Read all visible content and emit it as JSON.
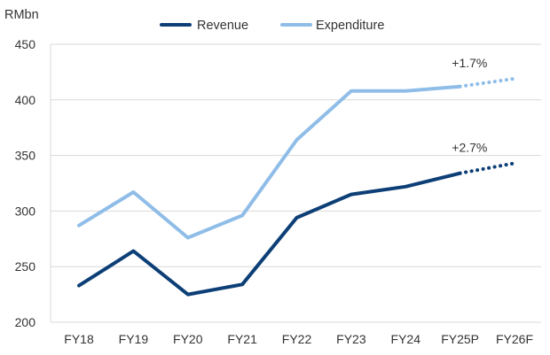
{
  "chart_data": {
    "type": "line",
    "unit_label": "RMbn",
    "categories": [
      "FY18",
      "FY19",
      "FY20",
      "FY21",
      "FY22",
      "FY23",
      "FY24",
      "FY25P",
      "FY26F"
    ],
    "ylim": [
      200,
      450
    ],
    "yticks": [
      200,
      250,
      300,
      350,
      400,
      450
    ],
    "grid": true,
    "legend_position": "top-center",
    "series": [
      {
        "name": "Revenue",
        "color": "#0d3f77",
        "actual_values": [
          233,
          264,
          225,
          234,
          294,
          315,
          322,
          334,
          null
        ],
        "projection_values": [
          null,
          null,
          null,
          null,
          null,
          null,
          null,
          334,
          343
        ],
        "projection_label": "+2.7%"
      },
      {
        "name": "Expenditure",
        "color": "#8fbde8",
        "actual_values": [
          287,
          317,
          276,
          296,
          364,
          408,
          408,
          412,
          null
        ],
        "projection_values": [
          null,
          null,
          null,
          null,
          null,
          null,
          null,
          412,
          419
        ],
        "projection_label": "+1.7%"
      }
    ]
  }
}
